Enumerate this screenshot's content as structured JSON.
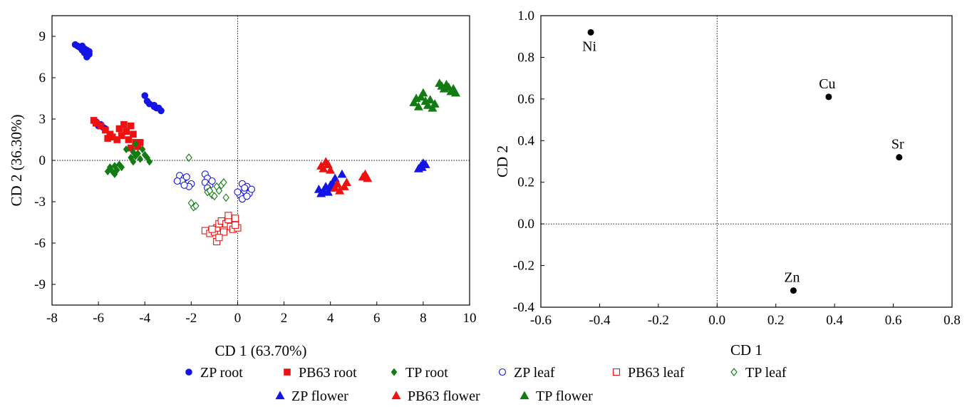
{
  "chart_data": [
    {
      "type": "scatter",
      "title": "",
      "xlabel": "CD 1 (63.70%)",
      "ylabel": "CD 2 (36.30%)",
      "xlim": [
        -8,
        10
      ],
      "ylim": [
        -10.5,
        10.5
      ],
      "xticks": [
        -8,
        -6,
        -4,
        -2,
        0,
        2,
        4,
        6,
        8,
        10
      ],
      "yticks": [
        9,
        6,
        3,
        0,
        -3,
        -6,
        -9
      ],
      "xtick_labels": [
        "-8",
        "-6",
        "-4",
        "-2",
        "0",
        "2",
        "4",
        "6",
        "8",
        "10"
      ],
      "ytick_labels": [
        "9",
        "6",
        "3",
        "0",
        "-3",
        "-6",
        "-9"
      ],
      "reference_lines": {
        "x": 0,
        "y": 0,
        "style": "dotted"
      },
      "legend_placement": "bottom",
      "series": [
        {
          "name": "ZP root",
          "color": "#1414e6",
          "marker": "circle",
          "filled": true,
          "points": [
            [
              -7.0,
              8.4
            ],
            [
              -6.9,
              8.3
            ],
            [
              -6.7,
              8.3
            ],
            [
              -6.6,
              8.1
            ],
            [
              -6.8,
              8.2
            ],
            [
              -6.5,
              8.0
            ],
            [
              -6.6,
              7.8
            ],
            [
              -6.4,
              7.7
            ],
            [
              -6.5,
              7.5
            ],
            [
              -6.7,
              8.0
            ],
            [
              -6.4,
              7.9
            ],
            [
              -4.0,
              4.7
            ],
            [
              -3.9,
              4.3
            ],
            [
              -3.8,
              4.1
            ],
            [
              -3.6,
              4.0
            ],
            [
              -3.5,
              3.8
            ],
            [
              -3.3,
              3.6
            ],
            [
              -3.6,
              3.9
            ],
            [
              -3.4,
              3.8
            ],
            [
              -6.1,
              2.8
            ],
            [
              -6.0,
              2.5
            ],
            [
              -5.8,
              2.4
            ],
            [
              -5.9,
              2.6
            ],
            [
              -5.7,
              2.3
            ]
          ]
        },
        {
          "name": "PB63 root",
          "color": "#ee1111",
          "marker": "square",
          "filled": true,
          "points": [
            [
              -6.2,
              2.9
            ],
            [
              -6.1,
              2.7
            ],
            [
              -5.9,
              2.5
            ],
            [
              -5.7,
              2.2
            ],
            [
              -5.5,
              1.9
            ],
            [
              -5.6,
              1.6
            ],
            [
              -5.4,
              1.7
            ],
            [
              -5.2,
              1.5
            ],
            [
              -5.0,
              1.8
            ],
            [
              -5.1,
              2.3
            ],
            [
              -4.9,
              2.6
            ],
            [
              -4.8,
              2.1
            ],
            [
              -4.6,
              2.5
            ],
            [
              -4.5,
              1.9
            ],
            [
              -4.7,
              1.5
            ],
            [
              -4.4,
              1.3
            ],
            [
              -4.3,
              1.0
            ],
            [
              -4.6,
              0.9
            ],
            [
              -4.2,
              1.3
            ]
          ]
        },
        {
          "name": "TP root",
          "color": "#137b13",
          "marker": "diamond",
          "filled": true,
          "points": [
            [
              -5.5,
              -0.5
            ],
            [
              -5.4,
              -0.8
            ],
            [
              -5.3,
              -1.0
            ],
            [
              -5.2,
              -0.7
            ],
            [
              -5.1,
              -0.3
            ],
            [
              -5.0,
              -0.5
            ],
            [
              -5.3,
              -0.4
            ],
            [
              -5.6,
              -0.8
            ],
            [
              -4.6,
              0.2
            ],
            [
              -4.5,
              0.6
            ],
            [
              -4.4,
              1.2
            ],
            [
              -4.3,
              0.5
            ],
            [
              -4.1,
              0.8
            ],
            [
              -4.0,
              0.4
            ],
            [
              -3.9,
              0.2
            ],
            [
              -4.2,
              0.1
            ],
            [
              -4.5,
              -0.1
            ],
            [
              -4.8,
              0.8
            ],
            [
              -4.4,
              0.3
            ],
            [
              -3.8,
              -0.1
            ]
          ]
        },
        {
          "name": "ZP leaf",
          "color": "#1414e6",
          "marker": "circle",
          "filled": false,
          "points": [
            [
              -2.5,
              -1.1
            ],
            [
              -2.3,
              -1.3
            ],
            [
              -2.4,
              -1.5
            ],
            [
              -2.2,
              -1.2
            ],
            [
              -2.0,
              -1.7
            ],
            [
              -2.1,
              -1.9
            ],
            [
              -2.3,
              -1.8
            ],
            [
              -2.6,
              -1.5
            ],
            [
              -1.4,
              -1.0
            ],
            [
              -1.3,
              -1.3
            ],
            [
              -1.4,
              -1.6
            ],
            [
              -1.2,
              -1.8
            ],
            [
              -1.1,
              -1.5
            ],
            [
              -1.3,
              -2.0
            ],
            [
              0.2,
              -1.7
            ],
            [
              0.4,
              -1.9
            ],
            [
              0.3,
              -2.2
            ],
            [
              0.5,
              -2.4
            ],
            [
              0.1,
              -2.5
            ],
            [
              0.2,
              -2.8
            ],
            [
              0.4,
              -2.6
            ],
            [
              0.6,
              -2.1
            ],
            [
              0.3,
              -2.0
            ],
            [
              0.0,
              -2.3
            ]
          ]
        },
        {
          "name": "PB63 leaf",
          "color": "#ee1111",
          "marker": "square",
          "filled": false,
          "points": [
            [
              -1.4,
              -5.1
            ],
            [
              -1.2,
              -5.3
            ],
            [
              -1.0,
              -5.2
            ],
            [
              -0.9,
              -4.9
            ],
            [
              -0.8,
              -4.6
            ],
            [
              -0.7,
              -4.4
            ],
            [
              -0.5,
              -4.6
            ],
            [
              -0.4,
              -4.3
            ],
            [
              -0.3,
              -4.8
            ],
            [
              -0.2,
              -5.0
            ],
            [
              -0.1,
              -4.2
            ],
            [
              0.0,
              -4.9
            ],
            [
              -0.6,
              -5.2
            ],
            [
              -0.9,
              -5.9
            ],
            [
              -0.8,
              -5.6
            ],
            [
              -1.1,
              -5.0
            ],
            [
              -0.4,
              -4.0
            ],
            [
              -0.1,
              -4.7
            ]
          ]
        },
        {
          "name": "TP leaf",
          "color": "#137b13",
          "marker": "diamond",
          "filled": false,
          "points": [
            [
              -2.1,
              0.2
            ],
            [
              -1.9,
              -3.4
            ],
            [
              -2.0,
              -3.1
            ],
            [
              -1.8,
              -3.3
            ],
            [
              -1.3,
              -2.3
            ],
            [
              -1.1,
              -2.5
            ],
            [
              -1.2,
              -2.2
            ],
            [
              -0.9,
              -1.9
            ],
            [
              -0.8,
              -2.2
            ],
            [
              -0.7,
              -1.8
            ],
            [
              -0.6,
              -1.6
            ],
            [
              -1.0,
              -2.6
            ],
            [
              -0.5,
              -2.7
            ]
          ]
        },
        {
          "name": "ZP flower",
          "color": "#1414e6",
          "marker": "triangle",
          "filled": true,
          "points": [
            [
              3.5,
              -2.1
            ],
            [
              3.6,
              -2.4
            ],
            [
              3.7,
              -2.2
            ],
            [
              3.8,
              -1.9
            ],
            [
              3.9,
              -2.3
            ],
            [
              4.0,
              -1.8
            ],
            [
              4.1,
              -1.6
            ],
            [
              4.2,
              -1.3
            ],
            [
              4.0,
              -2.0
            ],
            [
              4.5,
              -1.0
            ],
            [
              7.8,
              -0.6
            ],
            [
              7.9,
              -0.4
            ],
            [
              8.0,
              -0.2
            ],
            [
              8.1,
              -0.3
            ],
            [
              7.95,
              -0.5
            ]
          ]
        },
        {
          "name": "PB63 flower",
          "color": "#ee1111",
          "marker": "triangle",
          "filled": true,
          "points": [
            [
              3.6,
              -0.4
            ],
            [
              3.7,
              -0.6
            ],
            [
              3.8,
              -0.1
            ],
            [
              3.9,
              -0.3
            ],
            [
              4.0,
              -0.7
            ],
            [
              4.2,
              -2.0
            ],
            [
              4.3,
              -1.7
            ],
            [
              4.4,
              -2.2
            ],
            [
              4.6,
              -1.9
            ],
            [
              4.7,
              -1.6
            ],
            [
              5.4,
              -1.2
            ],
            [
              5.5,
              -1.0
            ],
            [
              5.6,
              -1.3
            ]
          ]
        },
        {
          "name": "TP flower",
          "color": "#137b13",
          "marker": "triangle",
          "filled": true,
          "points": [
            [
              7.6,
              4.2
            ],
            [
              7.7,
              4.5
            ],
            [
              7.8,
              3.9
            ],
            [
              7.9,
              4.6
            ],
            [
              8.0,
              4.9
            ],
            [
              8.1,
              4.3
            ],
            [
              8.2,
              4.0
            ],
            [
              8.3,
              4.4
            ],
            [
              8.4,
              3.8
            ],
            [
              8.5,
              4.1
            ],
            [
              8.7,
              5.6
            ],
            [
              8.8,
              5.4
            ],
            [
              9.0,
              5.5
            ],
            [
              9.1,
              5.3
            ],
            [
              9.2,
              5.0
            ],
            [
              9.3,
              5.2
            ],
            [
              9.4,
              4.9
            ],
            [
              8.9,
              5.2
            ]
          ]
        }
      ]
    },
    {
      "type": "scatter",
      "title": "",
      "xlabel": "CD 1",
      "ylabel": "CD 2",
      "xlim": [
        -0.6,
        0.8
      ],
      "ylim": [
        -0.4,
        1.0
      ],
      "xticks": [
        -0.6,
        -0.4,
        -0.2,
        0.0,
        0.2,
        0.4,
        0.6,
        0.8
      ],
      "yticks": [
        1.0,
        0.8,
        0.6,
        0.4,
        0.2,
        0.0,
        -0.2,
        -0.4
      ],
      "xtick_labels": [
        "-0.6",
        "-0.4",
        "-0.2",
        "0.0",
        "0.2",
        "0.4",
        "0.6",
        "0.8"
      ],
      "ytick_labels": [
        "1.0",
        "0.8",
        "0.6",
        "0.4",
        "0.2",
        "0.0",
        "-0.2",
        "-0.4"
      ],
      "reference_lines": {
        "x": 0,
        "y": 0,
        "style": "dotted"
      },
      "points": [
        {
          "label": "Ni",
          "x": -0.43,
          "y": 0.92,
          "label_side": "below"
        },
        {
          "label": "Cu",
          "x": 0.38,
          "y": 0.61,
          "label_side": "above"
        },
        {
          "label": "Sr",
          "x": 0.62,
          "y": 0.32,
          "label_side": "above"
        },
        {
          "label": "Zn",
          "x": 0.26,
          "y": -0.32,
          "label_side": "above"
        }
      ]
    }
  ],
  "legend": {
    "rows": [
      [
        "ZP root",
        "PB63 root",
        "TP root",
        "ZP leaf",
        "PB63 leaf",
        "TP leaf"
      ],
      [
        "ZP flower",
        "PB63 flower",
        "TP flower"
      ]
    ]
  }
}
